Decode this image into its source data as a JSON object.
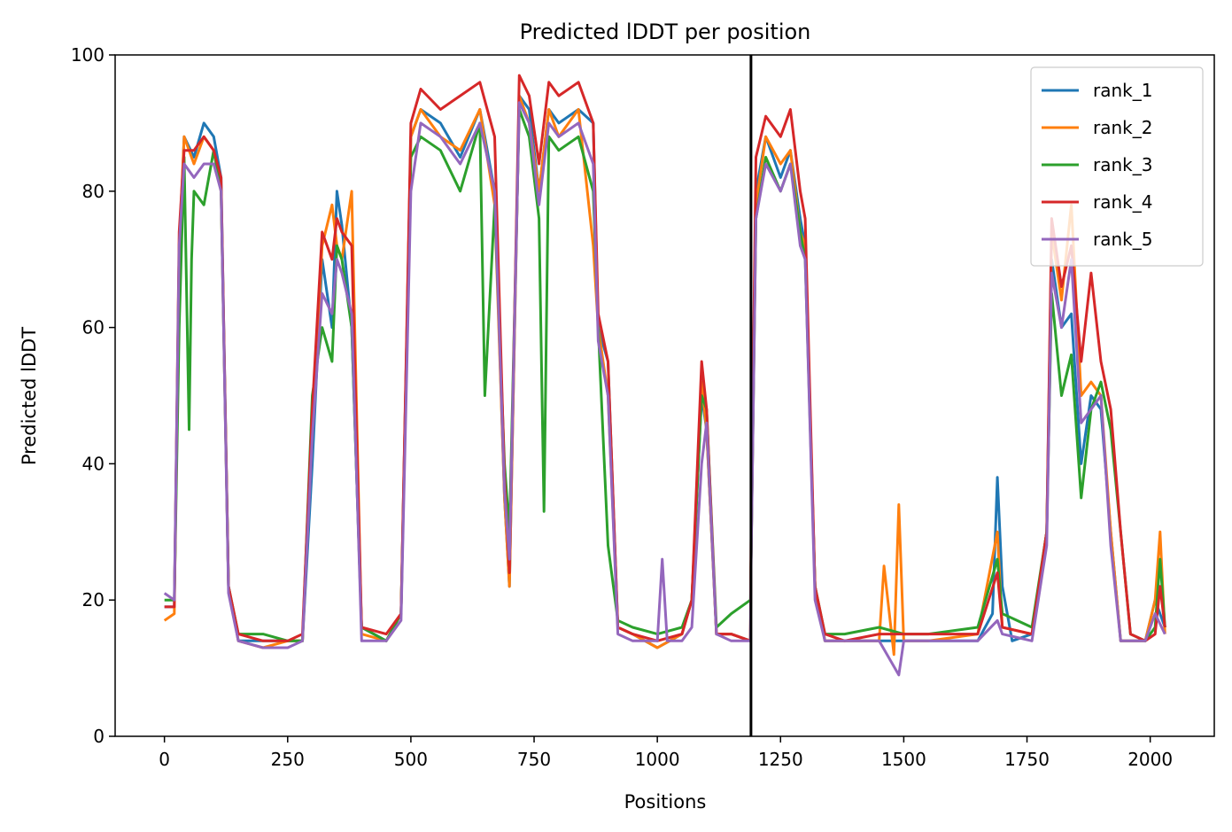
{
  "chart_data": {
    "type": "line",
    "title": "Predicted lDDT per position",
    "xlabel": "Positions",
    "ylabel": "Predicted lDDT",
    "xlim": [
      -100,
      2130
    ],
    "ylim": [
      0,
      100
    ],
    "xticks": [
      0,
      250,
      500,
      750,
      1000,
      1250,
      1500,
      1750,
      2000
    ],
    "yticks": [
      0,
      20,
      40,
      60,
      80,
      100
    ],
    "legend_position": "top-right",
    "vline_x": 1190,
    "series": [
      {
        "name": "rank_1",
        "color": "#1f77b4",
        "x": [
          0,
          20,
          30,
          40,
          60,
          80,
          100,
          115,
          130,
          150,
          200,
          250,
          280,
          300,
          320,
          340,
          350,
          360,
          380,
          400,
          450,
          480,
          500,
          520,
          560,
          600,
          640,
          670,
          690,
          700,
          720,
          740,
          760,
          780,
          800,
          840,
          870,
          880,
          900,
          920,
          950,
          1000,
          1050,
          1070,
          1090,
          1100,
          1120,
          1150,
          1189,
          1190,
          1200,
          1220,
          1250,
          1270,
          1290,
          1300,
          1320,
          1340,
          1380,
          1450,
          1500,
          1550,
          1650,
          1680,
          1690,
          1700,
          1720,
          1760,
          1790,
          1800,
          1820,
          1840,
          1860,
          1880,
          1900,
          1920,
          1940,
          1960,
          1990,
          2010,
          2030
        ],
        "y": [
          19,
          19,
          70,
          88,
          85,
          90,
          88,
          82,
          22,
          14,
          14,
          14,
          14,
          40,
          70,
          60,
          80,
          75,
          60,
          16,
          14,
          18,
          88,
          92,
          90,
          85,
          92,
          80,
          35,
          22,
          94,
          92,
          80,
          92,
          90,
          92,
          90,
          60,
          55,
          16,
          15,
          13,
          15,
          20,
          50,
          45,
          15,
          15,
          14,
          25,
          80,
          88,
          82,
          86,
          76,
          72,
          22,
          14,
          14,
          14,
          14,
          14,
          14,
          18,
          38,
          22,
          14,
          15,
          30,
          70,
          60,
          62,
          40,
          50,
          48,
          30,
          14,
          14,
          14,
          20,
          16
        ]
      },
      {
        "name": "rank_2",
        "color": "#ff7f0e",
        "x": [
          0,
          20,
          30,
          40,
          60,
          80,
          100,
          115,
          130,
          150,
          200,
          250,
          280,
          300,
          320,
          340,
          350,
          360,
          380,
          400,
          450,
          480,
          500,
          520,
          560,
          600,
          640,
          670,
          690,
          700,
          720,
          740,
          760,
          780,
          800,
          840,
          870,
          880,
          900,
          920,
          950,
          1000,
          1050,
          1070,
          1090,
          1100,
          1120,
          1150,
          1189,
          1190,
          1200,
          1220,
          1250,
          1270,
          1290,
          1300,
          1320,
          1340,
          1380,
          1450,
          1460,
          1480,
          1490,
          1500,
          1550,
          1650,
          1690,
          1700,
          1760,
          1790,
          1800,
          1820,
          1840,
          1860,
          1880,
          1900,
          1920,
          1940,
          1960,
          1990,
          2010,
          2020,
          2030
        ],
        "y": [
          17,
          18,
          72,
          88,
          84,
          88,
          86,
          80,
          22,
          14,
          13,
          14,
          14,
          45,
          72,
          78,
          72,
          70,
          80,
          15,
          14,
          18,
          88,
          92,
          88,
          86,
          92,
          78,
          35,
          22,
          94,
          90,
          80,
          92,
          88,
          92,
          72,
          60,
          50,
          16,
          15,
          13,
          15,
          20,
          52,
          45,
          15,
          15,
          14,
          25,
          78,
          88,
          84,
          86,
          74,
          72,
          22,
          14,
          14,
          14,
          25,
          12,
          34,
          14,
          14,
          15,
          30,
          16,
          15,
          30,
          74,
          64,
          78,
          50,
          52,
          50,
          30,
          14,
          14,
          14,
          20,
          30,
          15
        ]
      },
      {
        "name": "rank_3",
        "color": "#2ca02c",
        "x": [
          0,
          20,
          30,
          40,
          50,
          55,
          60,
          80,
          100,
          115,
          130,
          150,
          200,
          250,
          280,
          300,
          320,
          340,
          350,
          360,
          380,
          400,
          450,
          480,
          500,
          520,
          560,
          600,
          640,
          650,
          670,
          690,
          700,
          720,
          740,
          760,
          770,
          780,
          800,
          840,
          870,
          880,
          900,
          920,
          950,
          1000,
          1050,
          1070,
          1090,
          1100,
          1120,
          1150,
          1189,
          1190,
          1200,
          1220,
          1250,
          1270,
          1290,
          1300,
          1320,
          1340,
          1380,
          1450,
          1500,
          1550,
          1650,
          1690,
          1700,
          1760,
          1790,
          1800,
          1820,
          1840,
          1860,
          1880,
          1900,
          1920,
          1940,
          1960,
          1990,
          2010,
          2020,
          2030
        ],
        "y": [
          20,
          20,
          60,
          85,
          45,
          70,
          80,
          78,
          86,
          80,
          22,
          15,
          15,
          14,
          14,
          50,
          60,
          55,
          72,
          70,
          60,
          16,
          14,
          18,
          85,
          88,
          86,
          80,
          90,
          50,
          78,
          40,
          30,
          92,
          88,
          76,
          33,
          88,
          86,
          88,
          80,
          60,
          28,
          17,
          16,
          15,
          16,
          20,
          50,
          48,
          16,
          18,
          20,
          25,
          76,
          85,
          80,
          84,
          74,
          70,
          22,
          15,
          15,
          16,
          15,
          15,
          16,
          26,
          18,
          16,
          30,
          65,
          50,
          56,
          35,
          48,
          52,
          45,
          30,
          15,
          14,
          16,
          26,
          16
        ]
      },
      {
        "name": "rank_4",
        "color": "#d62728",
        "x": [
          0,
          20,
          30,
          40,
          60,
          80,
          100,
          115,
          130,
          150,
          200,
          250,
          280,
          300,
          320,
          340,
          350,
          360,
          380,
          400,
          450,
          480,
          500,
          520,
          560,
          600,
          640,
          670,
          690,
          700,
          720,
          740,
          760,
          780,
          800,
          840,
          870,
          880,
          900,
          920,
          950,
          1000,
          1050,
          1070,
          1090,
          1100,
          1120,
          1150,
          1189,
          1190,
          1200,
          1220,
          1250,
          1270,
          1290,
          1300,
          1320,
          1340,
          1380,
          1450,
          1500,
          1550,
          1650,
          1690,
          1700,
          1760,
          1790,
          1800,
          1820,
          1840,
          1860,
          1880,
          1900,
          1920,
          1940,
          1960,
          1990,
          2010,
          2020,
          2030
        ],
        "y": [
          19,
          19,
          74,
          86,
          86,
          88,
          86,
          82,
          22,
          15,
          14,
          14,
          15,
          48,
          74,
          70,
          76,
          74,
          72,
          16,
          15,
          18,
          90,
          95,
          92,
          94,
          96,
          88,
          38,
          24,
          97,
          94,
          84,
          96,
          94,
          96,
          90,
          62,
          55,
          16,
          15,
          14,
          15,
          20,
          55,
          48,
          15,
          15,
          14,
          28,
          85,
          91,
          88,
          92,
          80,
          76,
          22,
          15,
          14,
          15,
          15,
          15,
          15,
          24,
          16,
          15,
          30,
          76,
          66,
          72,
          55,
          68,
          55,
          48,
          30,
          15,
          14,
          15,
          22,
          16
        ]
      },
      {
        "name": "rank_5",
        "color": "#9467bd",
        "x": [
          0,
          20,
          30,
          40,
          60,
          80,
          100,
          115,
          130,
          150,
          200,
          250,
          280,
          300,
          320,
          340,
          350,
          360,
          380,
          400,
          450,
          480,
          500,
          520,
          560,
          600,
          640,
          670,
          690,
          700,
          720,
          740,
          760,
          780,
          800,
          840,
          870,
          880,
          900,
          920,
          950,
          1000,
          1010,
          1020,
          1050,
          1070,
          1090,
          1100,
          1120,
          1150,
          1189,
          1190,
          1200,
          1220,
          1250,
          1270,
          1290,
          1300,
          1320,
          1340,
          1380,
          1450,
          1490,
          1500,
          1550,
          1650,
          1690,
          1700,
          1760,
          1790,
          1800,
          1820,
          1840,
          1860,
          1880,
          1900,
          1920,
          1940,
          1960,
          1990,
          2010,
          2030
        ],
        "y": [
          21,
          20,
          72,
          84,
          82,
          84,
          84,
          80,
          21,
          14,
          13,
          13,
          14,
          44,
          65,
          62,
          70,
          68,
          62,
          14,
          14,
          17,
          80,
          90,
          88,
          84,
          90,
          80,
          36,
          26,
          93,
          90,
          78,
          90,
          88,
          90,
          84,
          58,
          50,
          15,
          14,
          14,
          26,
          14,
          14,
          16,
          40,
          46,
          15,
          14,
          14,
          24,
          76,
          84,
          80,
          84,
          72,
          70,
          20,
          14,
          14,
          14,
          9,
          14,
          14,
          14,
          17,
          15,
          14,
          28,
          68,
          60,
          70,
          46,
          48,
          50,
          28,
          14,
          14,
          14,
          18,
          15
        ]
      }
    ]
  }
}
